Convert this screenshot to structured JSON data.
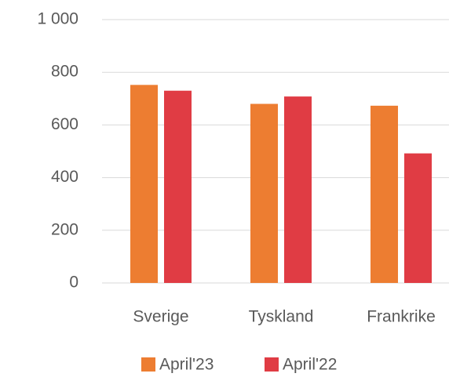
{
  "chart_data": {
    "type": "bar",
    "categories": [
      "Sverige",
      "Tyskland",
      "Frankrike"
    ],
    "series": [
      {
        "name": "April'23",
        "color": "#ed7d31",
        "values": [
          752,
          680,
          673
        ]
      },
      {
        "name": "April'22",
        "color": "#e03c44",
        "values": [
          730,
          708,
          492
        ]
      }
    ],
    "ylim": [
      0,
      1000
    ],
    "yticks": [
      0,
      200,
      400,
      600,
      800,
      {
        "value": 1000,
        "label": "1 000"
      }
    ],
    "grid": true
  }
}
